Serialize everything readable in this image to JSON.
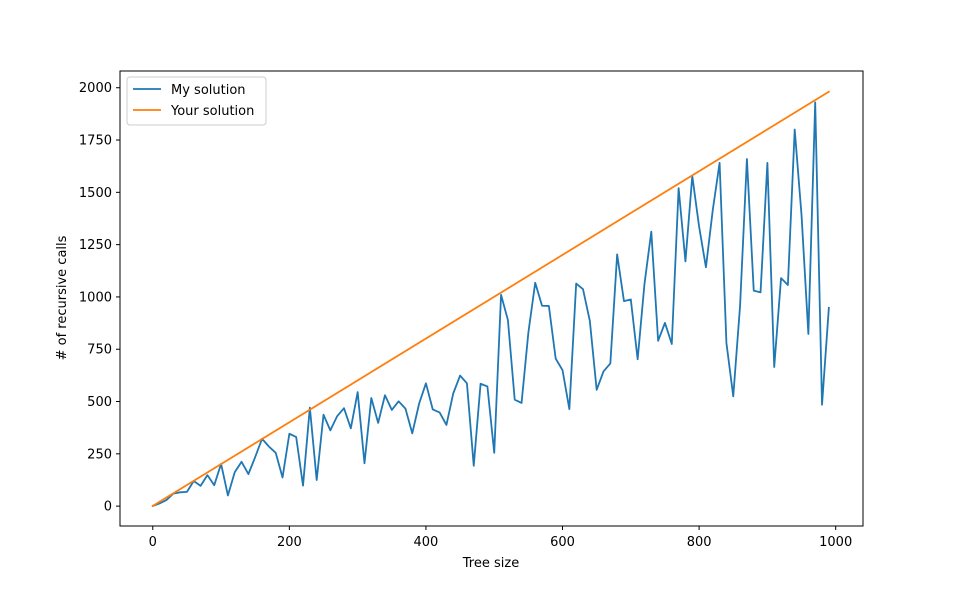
{
  "chart_data": {
    "type": "line",
    "title": "",
    "xlabel": "Tree size",
    "ylabel": "# of recursive calls",
    "xlim": [
      -48,
      1040
    ],
    "ylim": [
      -95,
      2080
    ],
    "x_ticks": [
      0,
      200,
      400,
      600,
      800,
      1000
    ],
    "y_ticks": [
      0,
      250,
      500,
      750,
      1000,
      1250,
      1500,
      1750,
      2000
    ],
    "grid": false,
    "legend_position": "top-left",
    "series": [
      {
        "name": "My solution",
        "color": "#1f77b4",
        "x": [
          0,
          10,
          20,
          30,
          40,
          50,
          60,
          70,
          80,
          90,
          100,
          110,
          120,
          130,
          140,
          150,
          160,
          170,
          180,
          190,
          200,
          210,
          220,
          230,
          240,
          250,
          260,
          270,
          280,
          290,
          300,
          310,
          320,
          330,
          340,
          350,
          360,
          370,
          380,
          390,
          400,
          410,
          420,
          430,
          440,
          450,
          460,
          470,
          480,
          490,
          500,
          510,
          520,
          530,
          540,
          550,
          560,
          570,
          580,
          590,
          600,
          610,
          620,
          630,
          640,
          650,
          660,
          670,
          680,
          690,
          700,
          710,
          720,
          730,
          740,
          750,
          760,
          770,
          780,
          790,
          800,
          810,
          820,
          830,
          840,
          850,
          860,
          870,
          880,
          890,
          900,
          910,
          920,
          930,
          940,
          950,
          960,
          970,
          980,
          990
        ],
        "y": [
          1,
          13,
          29,
          60,
          66,
          68,
          120,
          97,
          148,
          100,
          202,
          51,
          162,
          212,
          153,
          235,
          322,
          285,
          255,
          137,
          346,
          330,
          98,
          471,
          125,
          437,
          362,
          430,
          468,
          372,
          545,
          205,
          517,
          398,
          530,
          460,
          501,
          466,
          348,
          490,
          587,
          462,
          448,
          388,
          539,
          624,
          587,
          193,
          585,
          572,
          255,
          1010,
          890,
          509,
          493,
          830,
          1068,
          958,
          957,
          705,
          650,
          464,
          1064,
          1037,
          885,
          556,
          644,
          682,
          1203,
          980,
          988,
          702,
          1062,
          1312,
          790,
          876,
          775,
          1520,
          1170,
          1578,
          1336,
          1142,
          1415,
          1641,
          780,
          525,
          959,
          1659,
          1030,
          1022,
          1641,
          665,
          1090,
          1057,
          1800,
          1390,
          823,
          1930,
          485,
          948
        ]
      },
      {
        "name": "Your solution",
        "color": "#ff7f0e",
        "x": [
          0,
          990
        ],
        "y": [
          1,
          1981
        ]
      }
    ]
  }
}
